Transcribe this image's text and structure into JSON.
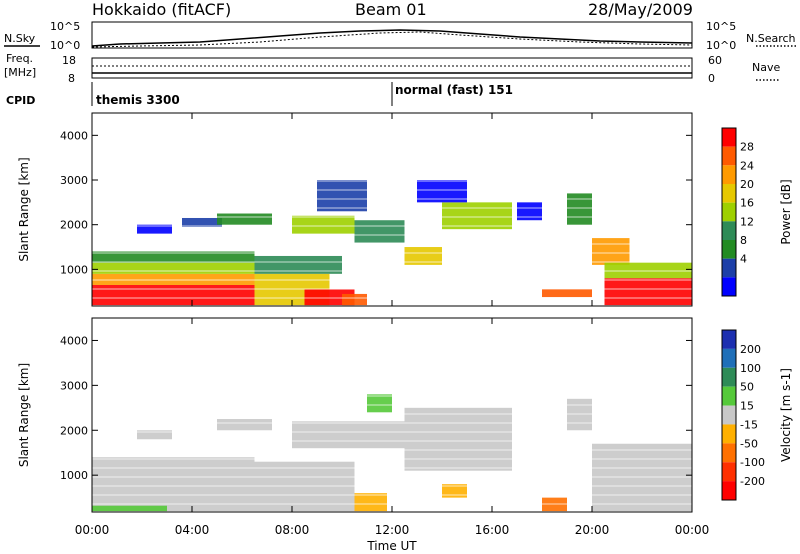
{
  "header": {
    "title": "Hokkaido (fitACF)",
    "beam": "Beam 01",
    "date": "28/May/2009"
  },
  "summary": {
    "nsky_label": "N.Sky",
    "nsearch_label": "N.Search",
    "freq_label": "Freq.",
    "freq_unit": "[MHz]",
    "nave_label": "Nave",
    "cpid_label": "CPID",
    "left_ticks_top": [
      "10^5",
      "10^0"
    ],
    "right_ticks_top": [
      "10^5",
      "10^0"
    ],
    "left_ticks_freq": [
      "18",
      "8"
    ],
    "right_ticks_nave": [
      "60",
      "0"
    ],
    "cpid_segments": [
      {
        "label": "themis 3300",
        "start_hour": 0
      },
      {
        "label": "normal (fast) 151",
        "start_hour": 12
      }
    ]
  },
  "chart_data": [
    {
      "type": "heatmap",
      "title": "",
      "xlabel": "",
      "ylabel": "Slant Range [km]",
      "x_ticks": [
        "00:00",
        "04:00",
        "08:00",
        "12:00",
        "16:00",
        "20:00",
        "00:00"
      ],
      "y_ticks": [
        "1000",
        "2000",
        "3000",
        "4000"
      ],
      "xlim_hours": [
        0,
        24
      ],
      "ylim_km": [
        180,
        4500
      ],
      "colorbar": {
        "label": "Power [dB]",
        "ticks": [
          "28",
          "24",
          "20",
          "16",
          "12",
          "8",
          "4"
        ],
        "colors": [
          "#ff0000",
          "#ff5a00",
          "#ff9a00",
          "#e6c800",
          "#9ed000",
          "#2e8b57",
          "#228b22",
          "#1c3fa8",
          "#0000ff"
        ]
      },
      "bands": [
        {
          "t0": 0.0,
          "t1": 6.5,
          "r0": 200,
          "r1": 650,
          "c": 0
        },
        {
          "t0": 0.0,
          "t1": 6.5,
          "r0": 650,
          "r1": 900,
          "c": 2
        },
        {
          "t0": 0.0,
          "t1": 6.5,
          "r0": 900,
          "r1": 1150,
          "c": 4
        },
        {
          "t0": 0.0,
          "t1": 6.5,
          "r0": 1150,
          "r1": 1400,
          "c": 6
        },
        {
          "t0": 6.5,
          "t1": 9.5,
          "r0": 200,
          "r1": 900,
          "c": 3
        },
        {
          "t0": 8.5,
          "t1": 10.5,
          "r0": 200,
          "r1": 550,
          "c": 0
        },
        {
          "t0": 6.5,
          "t1": 10.0,
          "r0": 900,
          "r1": 1300,
          "c": 5
        },
        {
          "t0": 10.0,
          "t1": 11.0,
          "r0": 200,
          "r1": 450,
          "c": 1
        },
        {
          "t0": 1.8,
          "t1": 3.2,
          "r0": 1800,
          "r1": 2000,
          "c": 8
        },
        {
          "t0": 3.6,
          "t1": 5.2,
          "r0": 1950,
          "r1": 2150,
          "c": 7
        },
        {
          "t0": 5.0,
          "t1": 7.2,
          "r0": 2000,
          "r1": 2250,
          "c": 6
        },
        {
          "t0": 8.0,
          "t1": 10.5,
          "r0": 1800,
          "r1": 2200,
          "c": 4
        },
        {
          "t0": 9.0,
          "t1": 11.0,
          "r0": 2300,
          "r1": 3000,
          "c": 7
        },
        {
          "t0": 10.5,
          "t1": 12.5,
          "r0": 1600,
          "r1": 2100,
          "c": 5
        },
        {
          "t0": 12.5,
          "t1": 14.0,
          "r0": 1100,
          "r1": 1500,
          "c": 3
        },
        {
          "t0": 14.0,
          "t1": 16.8,
          "r0": 1900,
          "r1": 2500,
          "c": 4
        },
        {
          "t0": 13.0,
          "t1": 15.0,
          "r0": 2500,
          "r1": 3000,
          "c": 8
        },
        {
          "t0": 17.0,
          "t1": 18.0,
          "r0": 2100,
          "r1": 2500,
          "c": 8
        },
        {
          "t0": 19.0,
          "t1": 20.0,
          "r0": 2000,
          "r1": 2700,
          "c": 6
        },
        {
          "t0": 20.0,
          "t1": 21.5,
          "r0": 1100,
          "r1": 1700,
          "c": 2
        },
        {
          "t0": 20.5,
          "t1": 24.0,
          "r0": 800,
          "r1": 1150,
          "c": 4
        },
        {
          "t0": 20.5,
          "t1": 24.0,
          "r0": 200,
          "r1": 800,
          "c": 0
        },
        {
          "t0": 18.0,
          "t1": 20.0,
          "r0": 380,
          "r1": 560,
          "c": 1
        }
      ]
    },
    {
      "type": "heatmap",
      "title": "",
      "xlabel": "Time UT",
      "ylabel": "Slant Range [km]",
      "x_ticks": [
        "00:00",
        "04:00",
        "08:00",
        "12:00",
        "16:00",
        "20:00",
        "00:00"
      ],
      "y_ticks": [
        "1000",
        "2000",
        "3000",
        "4000"
      ],
      "xlim_hours": [
        0,
        24
      ],
      "ylim_km": [
        180,
        4500
      ],
      "colorbar": {
        "label": "Velocity [m s-1]",
        "ticks": [
          "200",
          "100",
          "50",
          "15",
          "-15",
          "-50",
          "-100",
          "-200"
        ],
        "colors": [
          "#1c2fb0",
          "#1f6fb8",
          "#2e8b57",
          "#55c93a",
          "#c8c8c8",
          "#ffb000",
          "#ff7000",
          "#ff3000",
          "#ff0000"
        ]
      },
      "bands": [
        {
          "t0": 0.0,
          "t1": 6.5,
          "r0": 200,
          "r1": 1400,
          "c": 4
        },
        {
          "t0": 6.5,
          "t1": 10.5,
          "r0": 200,
          "r1": 1300,
          "c": 4
        },
        {
          "t0": 1.8,
          "t1": 3.2,
          "r0": 1800,
          "r1": 2000,
          "c": 4
        },
        {
          "t0": 5.0,
          "t1": 7.2,
          "r0": 2000,
          "r1": 2250,
          "c": 4
        },
        {
          "t0": 8.0,
          "t1": 12.5,
          "r0": 1600,
          "r1": 2200,
          "c": 4
        },
        {
          "t0": 12.5,
          "t1": 16.8,
          "r0": 1100,
          "r1": 2500,
          "c": 4
        },
        {
          "t0": 19.0,
          "t1": 20.0,
          "r0": 2000,
          "r1": 2700,
          "c": 4
        },
        {
          "t0": 20.0,
          "t1": 24.0,
          "r0": 200,
          "r1": 1700,
          "c": 4
        },
        {
          "t0": 10.5,
          "t1": 11.8,
          "r0": 200,
          "r1": 600,
          "c": 5
        },
        {
          "t0": 11.0,
          "t1": 12.0,
          "r0": 2400,
          "r1": 2800,
          "c": 3
        },
        {
          "t0": 14.0,
          "t1": 15.0,
          "r0": 500,
          "r1": 800,
          "c": 5
        },
        {
          "t0": 18.0,
          "t1": 19.0,
          "r0": 200,
          "r1": 500,
          "c": 6
        },
        {
          "t0": 0.0,
          "t1": 3.0,
          "r0": 200,
          "r1": 320,
          "c": 3
        }
      ]
    }
  ]
}
